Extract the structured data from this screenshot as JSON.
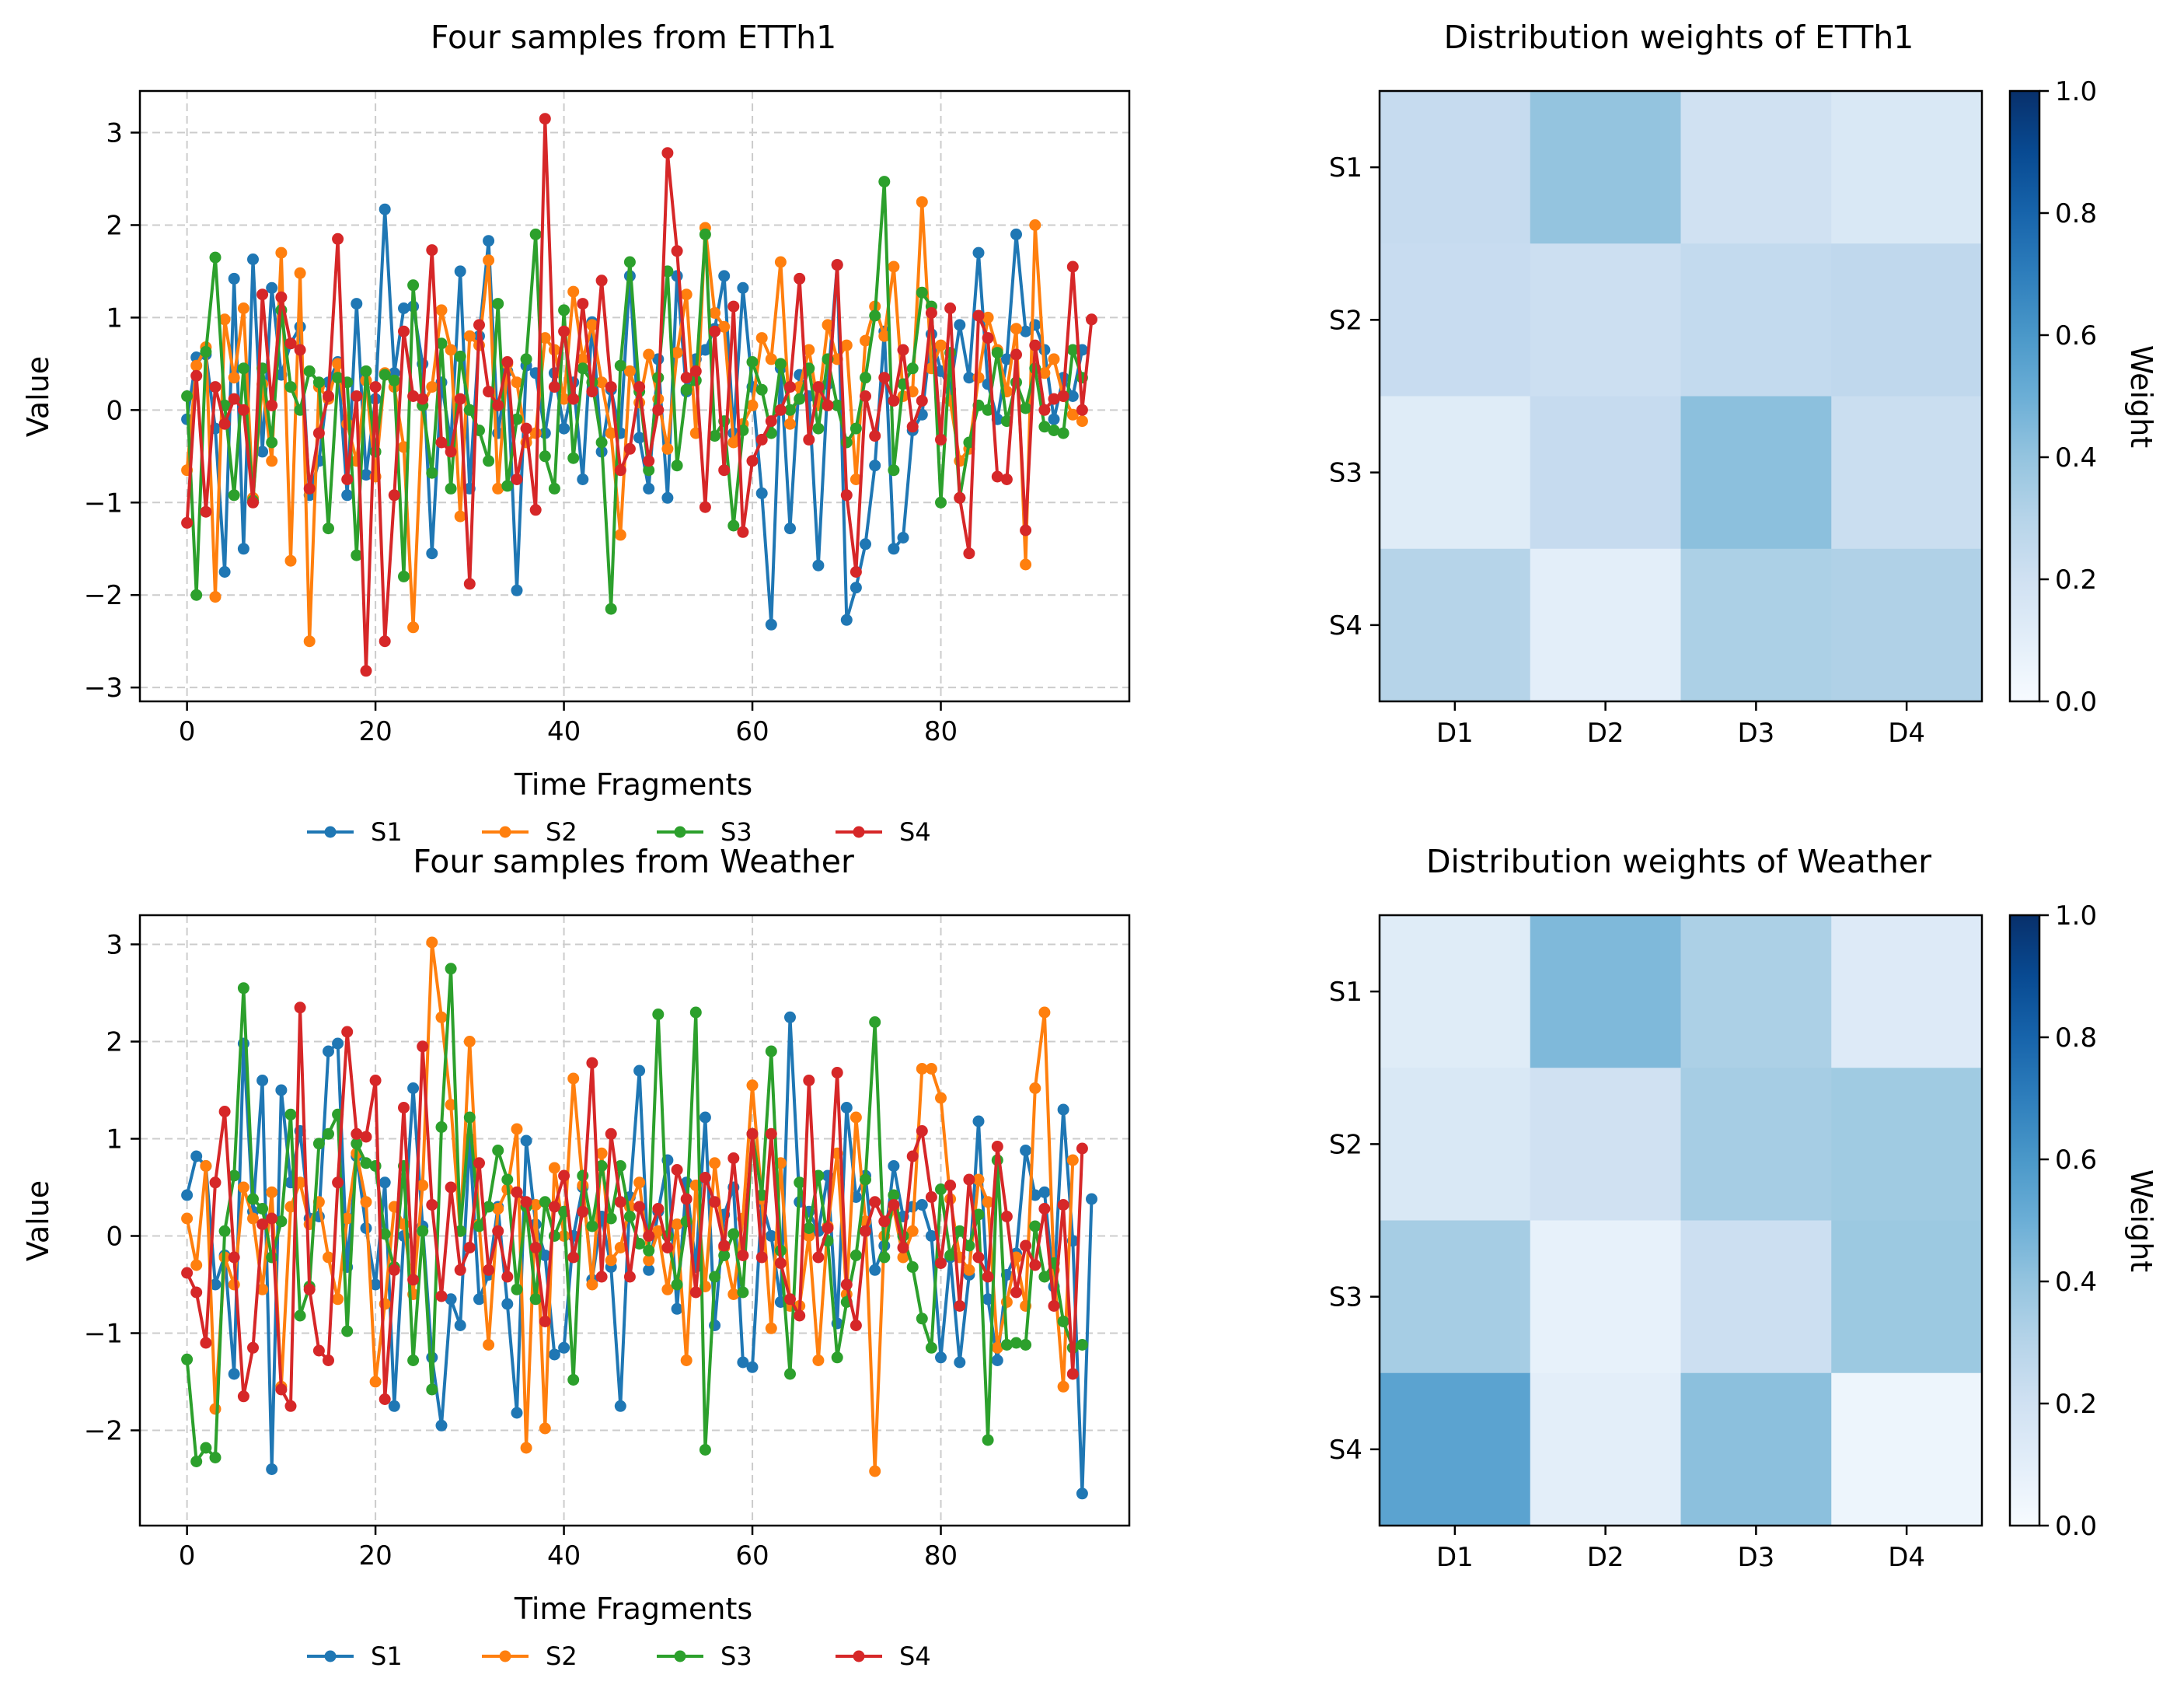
{
  "colors": {
    "S1": "#1f77b4",
    "S2": "#ff7f0e",
    "S3": "#2ca02c",
    "S4": "#d62728",
    "grid": "#cccccc",
    "heat_low": "#f7fbff",
    "heat_high": "#08306b"
  },
  "chart_data": [
    {
      "type": "line",
      "title": "Four samples from ETTh1",
      "xlabel": "Time Fragments",
      "ylabel": "Value",
      "xlim": [
        -5,
        100
      ],
      "ylim": [
        -3.15,
        3.45
      ],
      "xticks": [
        0,
        20,
        40,
        60,
        80
      ],
      "yticks": [
        -3,
        -2,
        -1,
        0,
        1,
        2,
        3
      ],
      "grid": true,
      "legend": "below the plot, 4 columns",
      "x": "0..95 (96 points, step 1)",
      "series": [
        {
          "name": "S1",
          "values": [
            -0.1,
            0.57,
            0.6,
            -0.2,
            -1.75,
            1.42,
            -1.5,
            1.63,
            -0.45,
            1.32,
            0.38,
            0.72,
            0.9,
            -0.92,
            -0.55,
            0.3,
            0.52,
            -0.92,
            1.15,
            -0.7,
            0.12,
            2.17,
            0.4,
            1.1,
            1.12,
            0.5,
            -1.55,
            0.3,
            -0.35,
            1.5,
            -0.85,
            0.8,
            1.83,
            -0.25,
            0.42,
            -1.95,
            0.48,
            0.4,
            -0.25,
            0.4,
            -0.2,
            0.3,
            -0.75,
            0.95,
            -0.45,
            0.22,
            -0.25,
            1.45,
            -0.3,
            -0.85,
            0.55,
            -0.95,
            1.45,
            0.2,
            0.55,
            0.65,
            0.88,
            1.45,
            -0.25,
            1.32,
            0.25,
            -0.9,
            -2.32,
            0.45,
            -1.28,
            0.38,
            0.15,
            -1.68,
            0.28,
            1.57,
            -2.27,
            -1.92,
            -1.45,
            -0.6,
            0.85,
            -1.5,
            -1.38,
            -0.22,
            -0.05,
            0.82,
            0.42,
            0.22,
            0.92,
            0.35,
            1.7,
            0.28,
            -0.1,
            0.55,
            1.9,
            0.85,
            0.92,
            0.65,
            -0.1,
            0.35,
            0.15,
            0.65
          ]
        },
        {
          "name": "S2",
          "values": [
            -0.65,
            0.48,
            0.68,
            -2.02,
            0.98,
            0.35,
            1.1,
            -0.95,
            0.28,
            -0.55,
            1.7,
            -1.63,
            1.48,
            -2.5,
            0.25,
            0.12,
            0.5,
            -0.15,
            -0.55,
            0.32,
            -0.72,
            0.4,
            0.25,
            -0.4,
            -2.35,
            0.05,
            0.25,
            1.08,
            0.65,
            -1.15,
            0.8,
            0.7,
            1.62,
            -0.85,
            0.5,
            0.3,
            -0.35,
            -0.25,
            0.78,
            0.65,
            0.12,
            1.28,
            0.55,
            0.92,
            0.3,
            -0.25,
            -1.35,
            0.42,
            0.08,
            0.6,
            0.12,
            -0.42,
            0.62,
            1.25,
            -0.25,
            1.97,
            1.05,
            0.9,
            -0.35,
            -0.15,
            0.05,
            0.78,
            0.55,
            1.6,
            -0.15,
            0.25,
            0.65,
            0.05,
            0.92,
            0.55,
            0.7,
            -0.75,
            0.75,
            1.12,
            0.8,
            1.55,
            0.15,
            0.2,
            2.25,
            0.45,
            0.7,
            0.1,
            -0.55,
            -0.42,
            0.35,
            1.0,
            0.65,
            0.2,
            0.88,
            -1.67,
            2.0,
            0.4,
            0.55,
            0.15,
            -0.05,
            -0.12
          ]
        },
        {
          "name": "S3",
          "values": [
            0.15,
            -2.0,
            0.63,
            1.65,
            0.05,
            -0.92,
            0.45,
            -0.98,
            0.45,
            -0.35,
            1.08,
            0.25,
            0.0,
            0.42,
            0.3,
            -1.28,
            0.35,
            0.3,
            -1.57,
            0.42,
            -0.45,
            0.38,
            0.32,
            -1.8,
            1.35,
            0.05,
            -0.68,
            0.72,
            -0.85,
            0.58,
            0.0,
            -0.22,
            -0.55,
            1.15,
            -0.82,
            -0.1,
            0.55,
            1.9,
            -0.5,
            -0.85,
            1.08,
            -0.52,
            0.45,
            0.3,
            -0.35,
            -2.15,
            0.48,
            1.6,
            0.2,
            -0.65,
            0.35,
            1.5,
            -0.6,
            0.22,
            0.32,
            1.9,
            -0.28,
            -0.12,
            -1.25,
            -0.22,
            0.52,
            0.22,
            -0.25,
            0.5,
            0.0,
            0.12,
            0.45,
            -0.2,
            0.55,
            0.05,
            -0.35,
            -0.2,
            0.35,
            1.02,
            2.47,
            -0.65,
            0.28,
            0.45,
            1.27,
            1.12,
            -1.0,
            0.62,
            -0.95,
            -0.35,
            0.05,
            0.0,
            0.62,
            -0.12,
            0.3,
            0.02,
            0.45,
            -0.18,
            -0.22,
            -0.25,
            0.65,
            0.35
          ]
        },
        {
          "name": "S4",
          "values": [
            -1.22,
            0.37,
            -1.1,
            0.25,
            -0.15,
            0.12,
            0.0,
            -1.0,
            1.25,
            0.05,
            1.22,
            0.72,
            0.65,
            -0.85,
            -0.25,
            0.15,
            1.85,
            -0.75,
            0.15,
            -2.82,
            0.25,
            -2.5,
            -0.92,
            0.85,
            0.15,
            0.12,
            1.73,
            -0.35,
            -0.45,
            0.12,
            -1.88,
            0.92,
            0.2,
            0.05,
            0.52,
            -0.75,
            -0.2,
            -1.08,
            3.15,
            0.25,
            0.85,
            0.12,
            1.15,
            0.2,
            1.4,
            0.25,
            -0.65,
            -0.42,
            0.25,
            -0.55,
            0.0,
            2.78,
            1.72,
            0.35,
            0.42,
            -1.05,
            0.85,
            -0.65,
            1.12,
            -1.32,
            -0.55,
            -0.32,
            -0.12,
            0.0,
            0.25,
            1.42,
            -0.32,
            0.25,
            0.05,
            1.57,
            -0.92,
            -1.75,
            0.15,
            -0.28,
            0.35,
            0.1,
            0.65,
            -0.18,
            0.1,
            1.05,
            -0.32,
            1.1,
            -0.95,
            -1.55,
            1.02,
            0.78,
            -0.72,
            -0.75,
            0.6,
            -1.3,
            0.7,
            0.0,
            0.12,
            0.15,
            1.55,
            0.0,
            0.98
          ]
        }
      ]
    },
    {
      "type": "heatmap",
      "title": "Distribution weights of ETTh1",
      "rows": [
        "S1",
        "S2",
        "S3",
        "S4"
      ],
      "cols": [
        "D1",
        "D2",
        "D3",
        "D4"
      ],
      "values": [
        [
          0.25,
          0.4,
          0.2,
          0.15
        ],
        [
          0.24,
          0.22,
          0.26,
          0.27
        ],
        [
          0.12,
          0.25,
          0.42,
          0.23
        ],
        [
          0.3,
          0.1,
          0.33,
          0.32
        ]
      ],
      "colorbar": {
        "label": "Weight",
        "range": [
          0.0,
          1.0
        ],
        "ticks": [
          "0.0",
          "0.2",
          "0.4",
          "0.6",
          "0.8",
          "1.0"
        ]
      }
    },
    {
      "type": "line",
      "title": "Four samples from Weather",
      "xlabel": "Time Fragments",
      "ylabel": "Value",
      "xlim": [
        -5,
        100
      ],
      "ylim": [
        -2.98,
        3.3
      ],
      "xticks": [
        0,
        20,
        40,
        60,
        80
      ],
      "yticks": [
        -2,
        -1,
        0,
        1,
        2,
        3
      ],
      "grid": true,
      "legend": "below the plot, 4 columns",
      "x": "0..95 (96 points, step 1)",
      "series": [
        {
          "name": "S1",
          "values": [
            0.42,
            0.82,
            0.72,
            -0.5,
            -0.2,
            -1.42,
            1.98,
            0.25,
            1.6,
            -2.4,
            1.5,
            0.55,
            1.08,
            0.18,
            0.2,
            1.9,
            1.98,
            -0.32,
            0.82,
            0.08,
            -0.5,
            0.55,
            -1.75,
            0.0,
            1.52,
            0.1,
            -1.25,
            -1.95,
            -0.65,
            -0.92,
            1.0,
            -0.65,
            -0.4,
            0.3,
            -0.7,
            -1.82,
            0.98,
            0.12,
            -0.2,
            -1.22,
            -1.15,
            0.0,
            0.5,
            -0.45,
            0.2,
            -0.32,
            -1.75,
            0.4,
            1.7,
            -0.35,
            0.25,
            0.78,
            -0.75,
            0.55,
            -0.32,
            1.22,
            -0.92,
            0.22,
            0.5,
            -1.3,
            -1.35,
            0.35,
            0.0,
            -0.68,
            2.25,
            0.35,
            0.25,
            0.05,
            0.62,
            -0.9,
            1.32,
            0.4,
            0.62,
            -0.35,
            -0.1,
            0.72,
            0.2,
            0.3,
            0.32,
            0.0,
            -1.25,
            -0.22,
            -1.3,
            -0.4,
            1.18,
            -0.65,
            -1.28,
            -0.4,
            -0.18,
            0.88,
            0.42,
            0.45,
            -0.52,
            1.3,
            -0.05,
            -2.65,
            0.38
          ]
        },
        {
          "name": "S2",
          "values": [
            0.18,
            -0.3,
            0.72,
            -1.78,
            -0.22,
            -0.5,
            0.5,
            0.18,
            -0.55,
            0.45,
            -1.55,
            0.3,
            0.55,
            0.12,
            0.35,
            -0.22,
            -0.65,
            0.18,
            0.85,
            0.35,
            -1.5,
            -0.7,
            0.3,
            0.12,
            -0.6,
            0.52,
            3.02,
            2.25,
            1.35,
            0.05,
            2.0,
            0.12,
            -1.12,
            0.28,
            0.48,
            1.1,
            -2.18,
            0.32,
            -1.98,
            0.7,
            0.0,
            1.62,
            0.52,
            -0.5,
            0.85,
            -0.25,
            -0.12,
            0.3,
            0.55,
            -0.25,
            0.05,
            -0.55,
            0.12,
            -1.28,
            0.52,
            -0.52,
            0.75,
            -0.12,
            -0.6,
            0.18,
            1.55,
            0.38,
            -0.95,
            0.75,
            -0.72,
            -0.72,
            0.0,
            -1.28,
            0.1,
            0.85,
            -0.6,
            1.22,
            0.15,
            -2.42,
            0.0,
            0.28,
            -0.22,
            0.05,
            1.72,
            1.72,
            1.42,
            0.38,
            -0.22,
            -0.35,
            0.58,
            0.35,
            -1.15,
            -0.68,
            -0.22,
            -0.72,
            1.52,
            2.3,
            -0.35,
            -1.55,
            0.78
          ]
        },
        {
          "name": "S3",
          "values": [
            -1.27,
            -2.32,
            -2.18,
            -2.28,
            0.05,
            0.62,
            2.55,
            0.38,
            0.28,
            -0.22,
            0.15,
            1.25,
            -0.82,
            -0.52,
            0.95,
            1.05,
            1.25,
            -0.98,
            0.95,
            0.75,
            0.72,
            0.02,
            -0.32,
            0.72,
            -1.28,
            0.05,
            -1.58,
            1.12,
            2.75,
            0.05,
            1.22,
            0.1,
            0.3,
            0.88,
            0.58,
            -0.55,
            0.3,
            -0.65,
            0.35,
            0.0,
            0.25,
            -1.48,
            0.62,
            0.1,
            0.72,
            0.18,
            0.72,
            0.2,
            -0.08,
            -0.15,
            2.28,
            0.0,
            -0.5,
            0.15,
            2.3,
            -2.2,
            -0.42,
            -0.2,
            0.02,
            -0.58,
            1.05,
            0.42,
            1.9,
            -0.15,
            -1.42,
            0.55,
            0.08,
            0.62,
            -0.05,
            -1.25,
            -0.68,
            -0.2,
            0.58,
            2.2,
            -0.22,
            0.42,
            0.0,
            -0.32,
            -0.85,
            -1.15,
            0.48,
            -0.2,
            0.05,
            -0.1,
            0.22,
            -2.1,
            0.78,
            -1.12,
            -1.1,
            -1.12,
            0.1,
            -0.42,
            -0.28,
            -0.88,
            -1.15,
            -1.12
          ]
        },
        {
          "name": "S4",
          "values": [
            -0.38,
            -0.58,
            -1.1,
            0.55,
            1.28,
            -0.22,
            -1.65,
            -1.15,
            0.12,
            0.18,
            -1.58,
            -1.75,
            2.35,
            -0.55,
            -1.18,
            -1.28,
            0.55,
            2.1,
            1.05,
            1.02,
            1.6,
            -1.68,
            -0.35,
            1.32,
            -0.45,
            1.95,
            0.32,
            -0.62,
            0.5,
            -0.35,
            -0.12,
            0.75,
            -0.35,
            0.05,
            -0.42,
            0.45,
            0.35,
            -0.12,
            -0.88,
            0.3,
            0.62,
            -0.22,
            0.25,
            1.78,
            -0.42,
            1.05,
            0.35,
            -0.42,
            0.3,
            0.0,
            0.28,
            -0.12,
            0.68,
            0.38,
            -0.58,
            0.6,
            0.35,
            -0.1,
            0.8,
            -0.2,
            1.05,
            -0.22,
            1.05,
            -0.28,
            -0.65,
            -0.82,
            1.6,
            -0.22,
            0.08,
            1.68,
            -0.5,
            -0.92,
            0.05,
            0.35,
            0.15,
            0.32,
            -0.12,
            0.82,
            1.08,
            0.4,
            -0.28,
            0.52,
            -0.72,
            0.58,
            -0.22,
            -0.42,
            0.92,
            0.2,
            -0.58,
            -0.1,
            -0.3,
            0.28,
            -0.72,
            0.32,
            -1.42,
            0.9
          ]
        }
      ]
    },
    {
      "type": "heatmap",
      "title": "Distribution weights of Weather",
      "rows": [
        "S1",
        "S2",
        "S3",
        "S4"
      ],
      "cols": [
        "D1",
        "D2",
        "D3",
        "D4"
      ],
      "values": [
        [
          0.12,
          0.45,
          0.33,
          0.13
        ],
        [
          0.15,
          0.2,
          0.35,
          0.37
        ],
        [
          0.35,
          0.08,
          0.22,
          0.38
        ],
        [
          0.55,
          0.1,
          0.42,
          0.05
        ]
      ],
      "colorbar": {
        "label": "Weight",
        "range": [
          0.0,
          1.0
        ],
        "ticks": [
          "0.0",
          "0.2",
          "0.4",
          "0.6",
          "0.8",
          "1.0"
        ]
      }
    }
  ]
}
